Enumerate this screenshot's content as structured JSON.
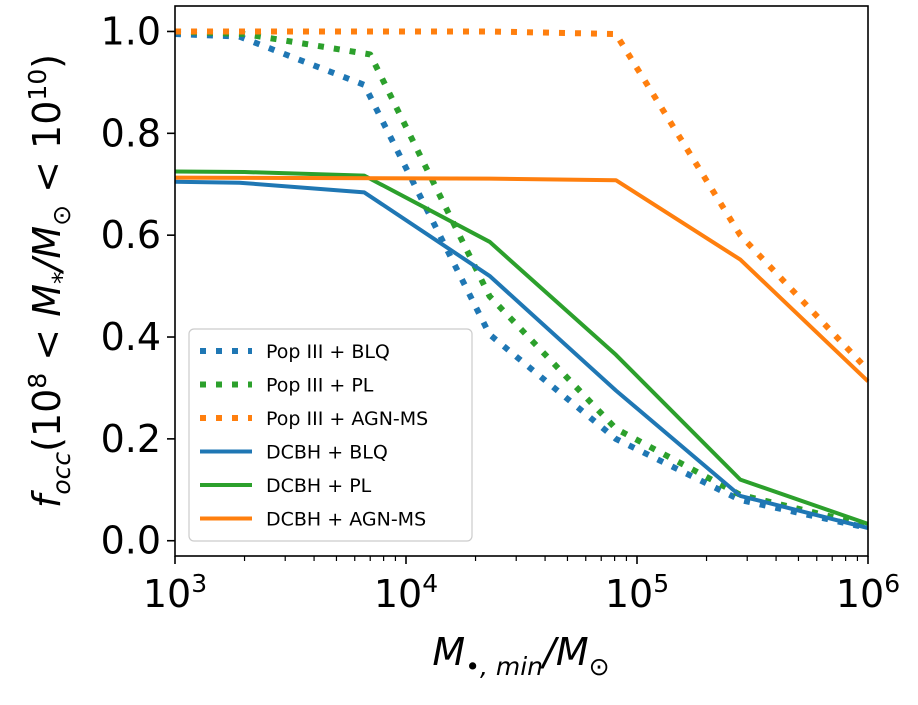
{
  "chart_data": {
    "type": "line",
    "title": "",
    "xscale": "log",
    "xlim": [
      1000,
      1000000
    ],
    "ylim": [
      -0.03,
      1.05
    ],
    "xticks": [
      {
        "value": 1000,
        "base": "10",
        "exp": "3"
      },
      {
        "value": 10000,
        "base": "10",
        "exp": "4"
      },
      {
        "value": 100000,
        "base": "10",
        "exp": "5"
      },
      {
        "value": 1000000,
        "base": "10",
        "exp": "6"
      }
    ],
    "yticks": [
      {
        "value": 0.0,
        "label": "0.0"
      },
      {
        "value": 0.2,
        "label": "0.2"
      },
      {
        "value": 0.4,
        "label": "0.4"
      },
      {
        "value": 0.6,
        "label": "0.6"
      },
      {
        "value": 0.8,
        "label": "0.8"
      },
      {
        "value": 1.0,
        "label": "1.0"
      }
    ],
    "xlabel": {
      "main": "M",
      "sub": "•, min",
      "sep": "/M",
      "sub2": "⊙"
    },
    "ylabel": {
      "f": "f",
      "fsub": "occ",
      "open": "(10",
      "exp1": "8",
      "mid": " < M",
      "msub": "*",
      "sep": "/M",
      "msub2": "⊙",
      "lt": " < 10",
      "exp2": "10",
      "close": ")"
    },
    "legend_position": "lower-left",
    "series": [
      {
        "name": "Pop III + BLQ",
        "color": "#1f77b4",
        "style": "dotted",
        "x": [
          1000,
          1900,
          6600,
          23000,
          81000,
          280000,
          1000000
        ],
        "y": [
          0.995,
          0.99,
          0.895,
          0.405,
          0.2,
          0.08,
          0.025
        ]
      },
      {
        "name": "Pop III + PL",
        "color": "#2ca02c",
        "style": "dotted",
        "x": [
          1000,
          2000,
          7000,
          23000,
          81000,
          280000,
          1000000
        ],
        "y": [
          1.0,
          0.995,
          0.955,
          0.48,
          0.22,
          0.09,
          0.03
        ]
      },
      {
        "name": "Pop III + AGN-MS",
        "color": "#ff7f0e",
        "style": "dotted",
        "x": [
          1000,
          23000,
          81000,
          280000,
          1000000
        ],
        "y": [
          1.0,
          1.0,
          0.995,
          0.6,
          0.335
        ]
      },
      {
        "name": "DCBH + BLQ",
        "color": "#1f77b4",
        "style": "solid",
        "x": [
          1000,
          1900,
          6600,
          23000,
          81000,
          280000,
          1000000
        ],
        "y": [
          0.705,
          0.703,
          0.684,
          0.52,
          0.295,
          0.088,
          0.025
        ]
      },
      {
        "name": "DCBH + PL",
        "color": "#2ca02c",
        "style": "solid",
        "x": [
          1000,
          2000,
          6600,
          23000,
          81000,
          280000,
          1000000
        ],
        "y": [
          0.725,
          0.724,
          0.717,
          0.587,
          0.365,
          0.12,
          0.033
        ]
      },
      {
        "name": "DCBH + AGN-MS",
        "color": "#ff7f0e",
        "style": "solid",
        "x": [
          1000,
          23000,
          81000,
          280000,
          1000000
        ],
        "y": [
          0.713,
          0.711,
          0.708,
          0.552,
          0.313
        ]
      }
    ]
  }
}
